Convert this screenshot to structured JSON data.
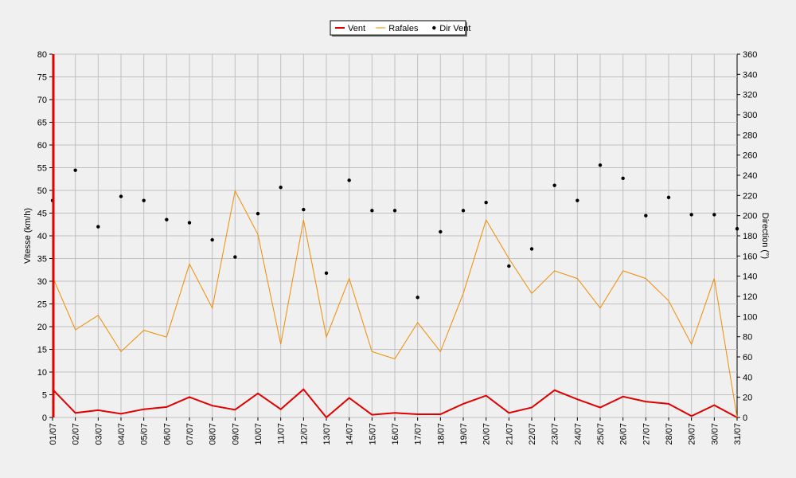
{
  "chart_data": {
    "type": "line",
    "categories": [
      "01/07",
      "02/07",
      "03/07",
      "04/07",
      "05/07",
      "06/07",
      "07/07",
      "08/07",
      "09/07",
      "10/07",
      "11/07",
      "12/07",
      "13/07",
      "14/07",
      "15/07",
      "16/07",
      "17/07",
      "18/07",
      "19/07",
      "20/07",
      "21/07",
      "22/07",
      "23/07",
      "24/07",
      "25/07",
      "26/07",
      "27/07",
      "28/07",
      "29/07",
      "30/07",
      "31/07"
    ],
    "left_axis": {
      "label": "Vitesse (km/h)",
      "ylim": [
        0,
        80
      ],
      "step": 5
    },
    "right_axis": {
      "label": "Direction (°)",
      "ylim": [
        0,
        360
      ],
      "step": 20
    },
    "grid": true,
    "legend": {
      "placement": "top-center"
    },
    "series": [
      {
        "name": "Vent",
        "axis": "left",
        "style": "line",
        "color": "#e00000",
        "values": [
          6.2,
          1.0,
          1.6,
          0.8,
          1.8,
          2.3,
          4.5,
          2.6,
          1.7,
          5.3,
          1.8,
          6.2,
          0.0,
          4.3,
          0.6,
          1.0,
          0.7,
          0.7,
          3.0,
          4.8,
          1.0,
          2.2,
          6.0,
          4.0,
          2.2,
          4.6,
          3.5,
          3.0,
          0.3,
          2.7,
          0.0
        ]
      },
      {
        "name": "Rafales",
        "axis": "left",
        "style": "line",
        "color": "#f08c00",
        "values": [
          31,
          19.3,
          22.5,
          14.5,
          19.2,
          17.7,
          33.8,
          24.1,
          49.9,
          40.3,
          16.1,
          43.5,
          17.7,
          30.6,
          14.5,
          12.9,
          20.9,
          14.5,
          27.3,
          43.5,
          35,
          27.3,
          32.3,
          30.6,
          24.1,
          32.3,
          30.6,
          25.7,
          16.1,
          30.6,
          0
        ]
      },
      {
        "name": "Dir Vent",
        "axis": "right",
        "style": "points",
        "color": "#000000",
        "values": [
          215,
          245,
          189,
          219,
          215,
          196,
          193,
          176,
          159,
          202,
          228,
          206,
          143,
          235,
          205,
          205,
          119,
          184,
          205,
          213,
          150,
          167,
          230,
          215,
          250,
          237,
          200,
          218,
          201,
          201,
          187
        ]
      }
    ]
  }
}
